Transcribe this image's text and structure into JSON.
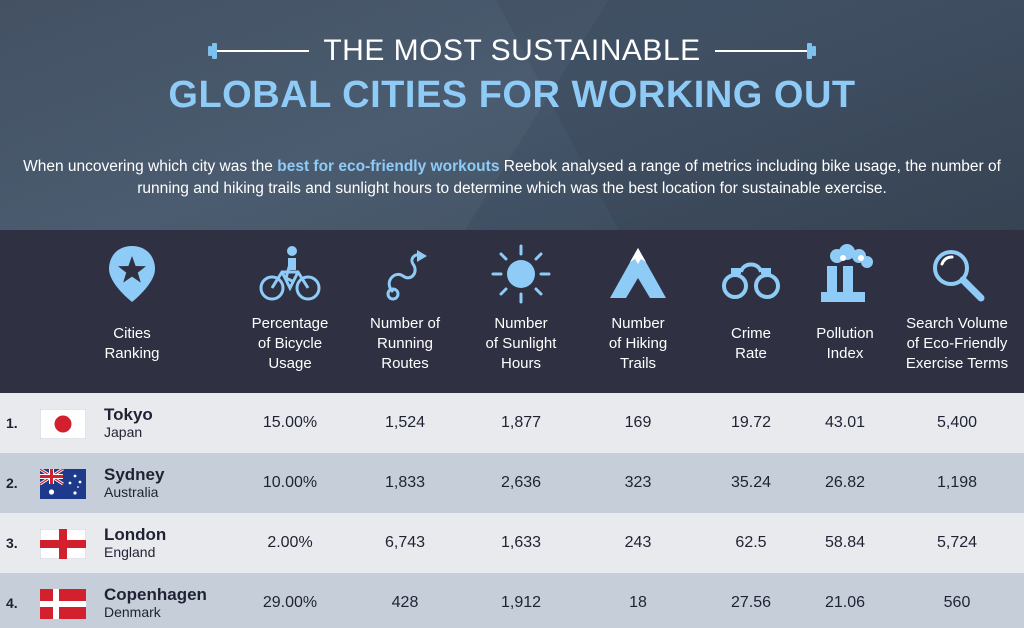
{
  "header": {
    "title_line1": "THE MOST SUSTAINABLE",
    "title_line2": "GLOBAL CITIES FOR WORKING OUT",
    "intro_before": "When uncovering which city was the ",
    "intro_highlight": "best for eco-friendly workouts",
    "intro_after": " Reebok analysed a range of metrics including bike usage, the number of running and hiking trails and sunlight hours to determine which was the best location for sustainable exercise."
  },
  "columns": [
    {
      "key": "ranking",
      "icon": "star-pin-icon",
      "line1": "Cities",
      "line2": "Ranking",
      "line3": ""
    },
    {
      "key": "bicycle",
      "icon": "cyclist-icon",
      "line1": "Percentage",
      "line2": "of Bicycle",
      "line3": "Usage"
    },
    {
      "key": "running",
      "icon": "running-route-icon",
      "line1": "Number of",
      "line2": "Running",
      "line3": "Routes"
    },
    {
      "key": "sunlight",
      "icon": "sun-icon",
      "line1": "Number",
      "line2": "of Sunlight",
      "line3": "Hours"
    },
    {
      "key": "hiking",
      "icon": "mountain-icon",
      "line1": "Number",
      "line2": "of Hiking",
      "line3": "Trails"
    },
    {
      "key": "crime",
      "icon": "handcuffs-icon",
      "line1": "Crime",
      "line2": "Rate",
      "line3": ""
    },
    {
      "key": "pollution",
      "icon": "factory-icon",
      "line1": "Pollution",
      "line2": "Index",
      "line3": ""
    },
    {
      "key": "search",
      "icon": "magnifier-icon",
      "line1": "Search Volume",
      "line2": "of Eco-Friendly",
      "line3": "Exercise Terms"
    }
  ],
  "rows": [
    {
      "rank": "1.",
      "city": "Tokyo",
      "country": "Japan",
      "flag": "japan-flag",
      "values": [
        "15.00%",
        "1,524",
        "1,877",
        "169",
        "19.72",
        "43.01",
        "5,400"
      ]
    },
    {
      "rank": "2.",
      "city": "Sydney",
      "country": "Australia",
      "flag": "australia-flag",
      "values": [
        "10.00%",
        "1,833",
        "2,636",
        "323",
        "35.24",
        "26.82",
        "1,198"
      ]
    },
    {
      "rank": "3.",
      "city": "London",
      "country": "England",
      "flag": "england-flag",
      "values": [
        "2.00%",
        "6,743",
        "1,633",
        "243",
        "62.5",
        "58.84",
        "5,724"
      ]
    },
    {
      "rank": "4.",
      "city": "Copenhagen",
      "country": "Denmark",
      "flag": "denmark-flag",
      "values": [
        "29.00%",
        "428",
        "1,912",
        "18",
        "27.56",
        "21.06",
        "560"
      ]
    }
  ],
  "colors": {
    "accent": "#8ecbf6",
    "header_bg": "#2f3142",
    "row_light": "#e8eaee",
    "row_dark": "#c6ced9",
    "text_dark": "#1f2233"
  }
}
